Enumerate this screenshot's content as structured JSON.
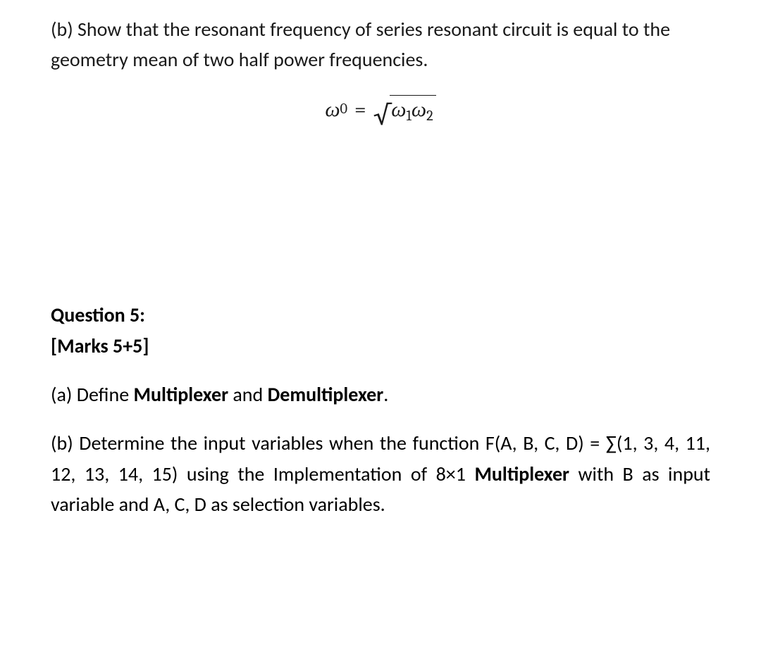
{
  "part_b_top": {
    "label": "(b)",
    "text_before": "Show that the resonant frequency of series resonant circuit is equal to the geometry mean of two half power frequencies."
  },
  "equation": {
    "omega": "ω",
    "sub0": "0",
    "equals": "=",
    "sub1": "1",
    "sub2": "2"
  },
  "question5": {
    "heading": "Question 5:",
    "marks": "[Marks 5+5]",
    "part_a": {
      "label": "(a)",
      "lead": "Define",
      "bold1": "Multiplexer",
      "and": "and",
      "bold2": "Demultiplexer",
      "tail": "."
    },
    "part_b": {
      "label": "(b)",
      "t1": "Determine the input variables when the function F(A, B, C, D) = ∑(1, 3, 4, 11, 12, 13, 14, 15) using the Implementation of 8×1",
      "bold1": "Multiplexer",
      "t2": "with B as input variable and A, C, D as selection variables."
    }
  }
}
